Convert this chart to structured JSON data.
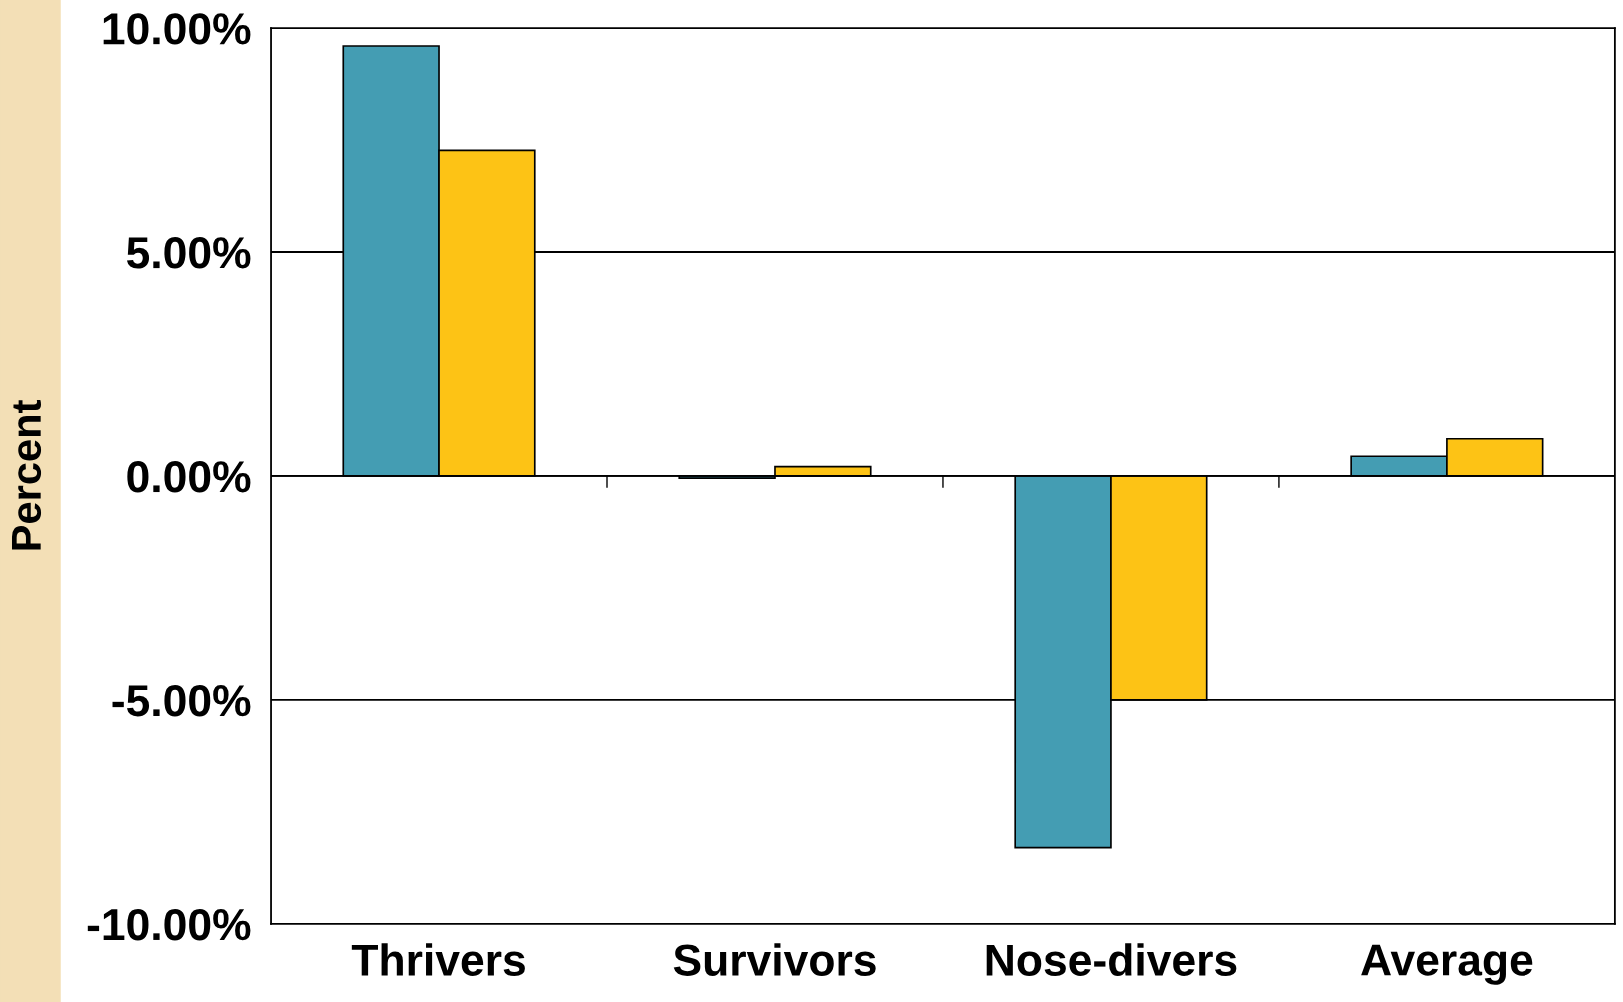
{
  "chart_data": {
    "type": "bar",
    "ylabel": "Percent",
    "categories": [
      "Thrivers",
      "Survivors",
      "Nose-divers",
      "Average"
    ],
    "series": [
      {
        "color": "#449db3",
        "values": [
          9.6,
          -0.05,
          -8.3,
          0.44
        ]
      },
      {
        "color": "#fdc315",
        "values": [
          7.27,
          0.21,
          -5.0,
          0.83
        ]
      }
    ],
    "ylim": [
      -10,
      10
    ],
    "yticks": [
      {
        "value": -10,
        "label": "-10.00%"
      },
      {
        "value": -5,
        "label": "-5.00%"
      },
      {
        "value": 0,
        "label": "0.00%"
      },
      {
        "value": 5,
        "label": "5.00%"
      },
      {
        "value": 10,
        "label": "10.00%"
      }
    ],
    "grid": "y"
  }
}
